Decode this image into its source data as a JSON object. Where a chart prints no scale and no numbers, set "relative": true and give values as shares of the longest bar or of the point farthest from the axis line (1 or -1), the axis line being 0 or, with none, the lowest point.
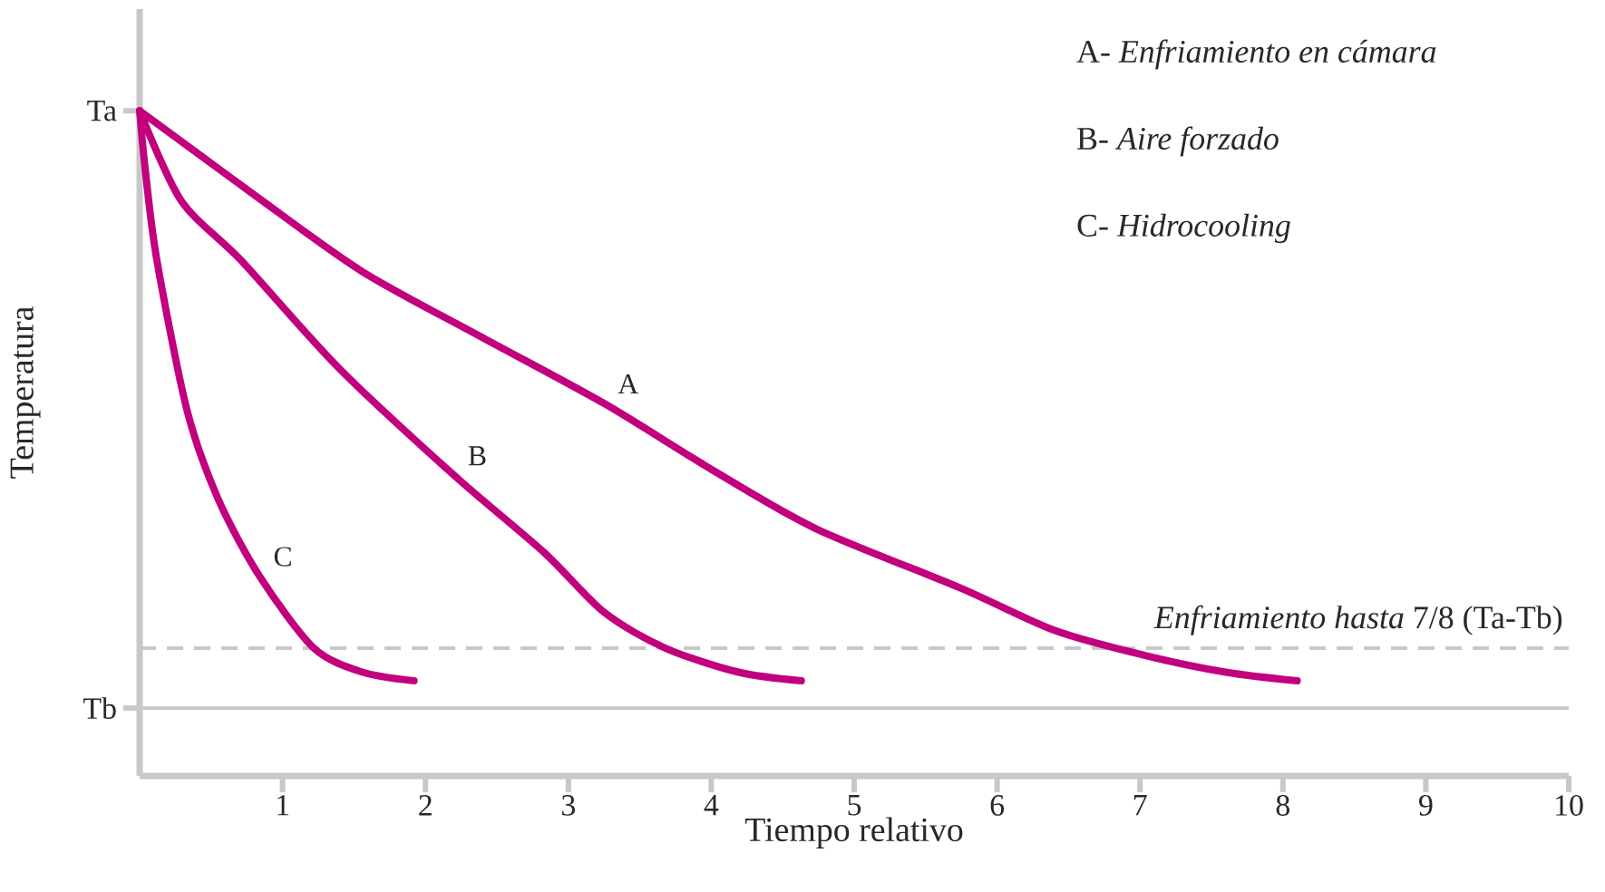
{
  "chart_data": {
    "type": "line",
    "xlabel": "Tiempo relativo",
    "ylabel": "Temperatura",
    "relative": true,
    "xlim": [
      0,
      10
    ],
    "xticks": [
      1,
      2,
      3,
      4,
      5,
      6,
      7,
      8,
      9,
      10
    ],
    "series": [
      {
        "name": "A",
        "color": "#c2007e",
        "x": [
          0,
          0.8,
          1.56,
          2.4,
          3.25,
          4.0,
          4.73,
          5.75,
          6.4,
          7.0,
          7.6,
          8.1
        ],
        "values": [
          1,
          0.874,
          0.758,
          0.659,
          0.56,
          0.461,
          0.372,
          0.282,
          0.219,
          0.183,
          0.156,
          0.143
        ]
      },
      {
        "name": "B",
        "color": "#c2007e",
        "x": [
          0,
          0.29,
          0.71,
          1.39,
          2.2,
          2.83,
          3.25,
          3.68,
          4.19,
          4.63
        ],
        "values": [
          1,
          0.865,
          0.775,
          0.614,
          0.452,
          0.336,
          0.246,
          0.192,
          0.156,
          0.143
        ]
      },
      {
        "name": "C",
        "color": "#c2007e",
        "x": [
          0,
          0.04,
          0.12,
          0.33,
          0.55,
          0.84,
          1.22,
          1.56,
          1.92
        ],
        "values": [
          1,
          0.91,
          0.776,
          0.551,
          0.416,
          0.3,
          0.192,
          0.156,
          0.143
        ]
      }
    ],
    "ref_lines": [
      {
        "axis": "y",
        "value": 0.192,
        "label": "*Enfriamiento hasta* 7/8 (Ta-Tb)",
        "color": "#c8c8c8",
        "line_style": "dashed"
      },
      {
        "axis": "y",
        "value": 0.102,
        "color": "#c8c8c8",
        "line_style": "solid"
      }
    ],
    "annotations": [
      {
        "text": "Ta",
        "x": 0,
        "y": 1
      },
      {
        "text": "Tb",
        "x": 0,
        "y": 0.102
      },
      "A- *Enfriamiento en cámara*",
      "B- *Aire forzado*",
      "C- *Hidrocooling*"
    ],
    "legend": false,
    "grid": false,
    "marker": "none",
    "line_style": "solid"
  }
}
